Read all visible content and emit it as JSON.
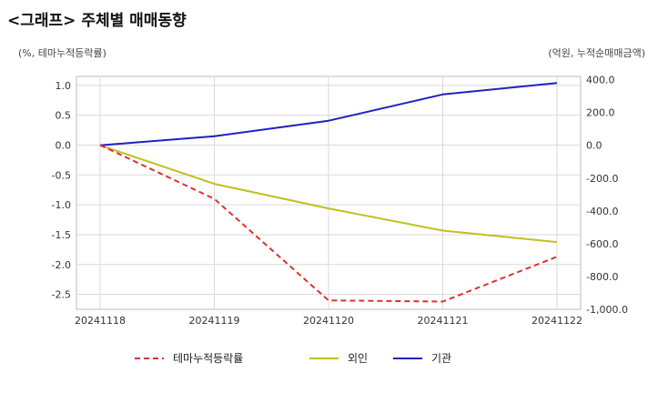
{
  "title": "<그래프> 주체별 매매동향",
  "unit_left": "(%, 테마누적등락률)",
  "unit_right": "(억원, 누적순매매금액)",
  "colors": {
    "theme": "#e03030",
    "foreign": "#c0c020",
    "institution": "#2020c0",
    "grid": "#d9d9d9"
  },
  "chart_data": {
    "type": "line",
    "x": [
      "20241118",
      "20241119",
      "20241120",
      "20241121",
      "20241122"
    ],
    "y_left": {
      "ticks": [
        "1.0",
        "0.5",
        "0.0",
        "-0.5",
        "-1.0",
        "-1.5",
        "-2.0",
        "-2.5"
      ],
      "lim": [
        -2.75,
        1.15
      ]
    },
    "y_right": {
      "ticks": [
        "400.0",
        "200.0",
        "0.0",
        "-200.0",
        "-400.0",
        "-600.0",
        "-800.0",
        "-1,000.0"
      ],
      "lim": [
        -1000,
        420
      ]
    },
    "series": [
      {
        "name": "테마누적등락률",
        "axis": "left",
        "style": "dashed",
        "values": [
          0.0,
          -0.9,
          -2.6,
          -2.62,
          -1.87
        ]
      },
      {
        "name": "외인",
        "axis": "right",
        "style": "solid",
        "values": [
          0,
          -235,
          -385,
          -520,
          -590
        ]
      },
      {
        "name": "기관",
        "axis": "right",
        "style": "solid",
        "values": [
          0,
          55,
          150,
          310,
          380
        ]
      }
    ],
    "grid": true,
    "legend": "bottom"
  }
}
